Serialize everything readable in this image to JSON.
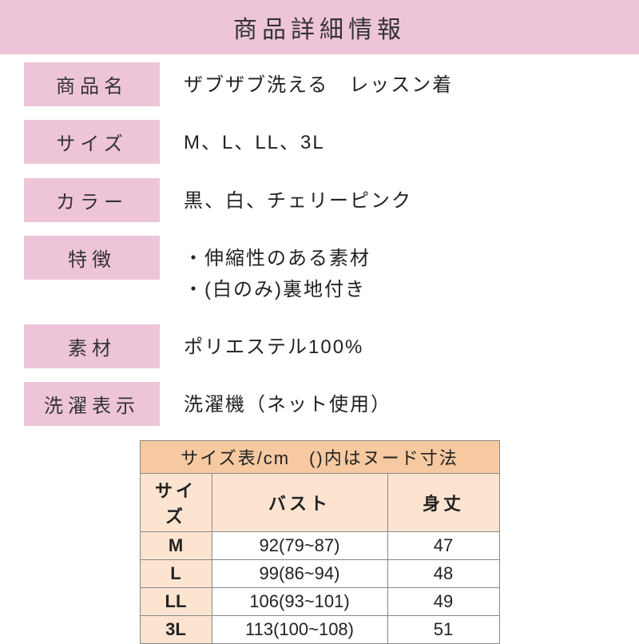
{
  "header": "商品詳細情報",
  "rows": [
    {
      "label": "商品名",
      "value": "ザブザブ洗える　レッスン着"
    },
    {
      "label": "サイズ",
      "value": "M、L、LL、3L"
    },
    {
      "label": "カラー",
      "value": "黒、白、チェリーピンク"
    },
    {
      "label": "特徴",
      "value": "・伸縮性のある素材\n・(白のみ)裏地付き"
    },
    {
      "label": "素材",
      "value": "ポリエステル100%"
    },
    {
      "label": "洗濯表示",
      "value": "洗濯機（ネット使用）"
    }
  ],
  "sizeTable": {
    "title": "サイズ表/cm　()内はヌード寸法",
    "columns": [
      "サイズ",
      "バスト",
      "身丈"
    ],
    "rows": [
      {
        "size": "M",
        "bust": "92(79~87)",
        "length": "47"
      },
      {
        "size": "L",
        "bust": "99(86~94)",
        "length": "48"
      },
      {
        "size": "LL",
        "bust": "106(93~101)",
        "length": "49"
      },
      {
        "size": "3L",
        "bust": "113(100~108)",
        "length": "51"
      }
    ],
    "colors": {
      "title_bg": "#f6c9a0",
      "head_bg": "#fce4d0",
      "label_bg": "#fce4d0",
      "border": "#888888"
    }
  },
  "colors": {
    "header_bg": "#eec5d8",
    "label_bg": "#eec5d8",
    "text": "#222222",
    "background": "#ffffff"
  }
}
